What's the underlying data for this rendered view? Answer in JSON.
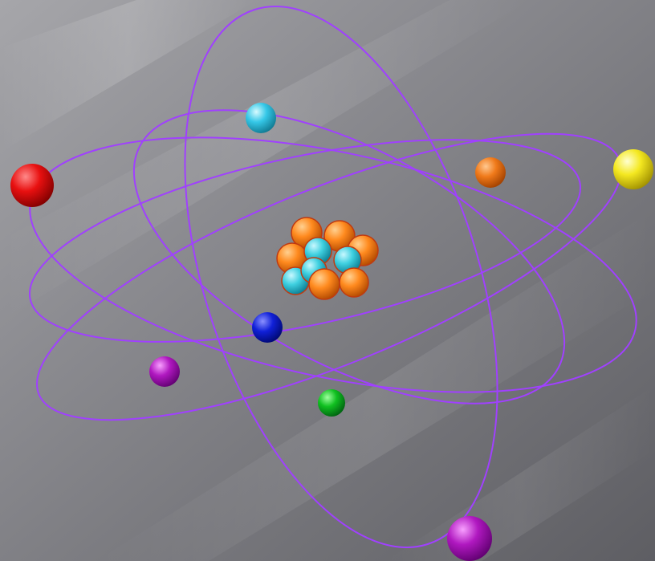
{
  "scene": {
    "subject": "atom",
    "colors": {
      "orbit": "#a040ff",
      "proton": "#ff8a1e",
      "neutron": "#3fd0e0",
      "electron_red": "#e81010",
      "electron_cyan": "#35c8e8",
      "electron_orange": "#f07a1a",
      "electron_yellow": "#f4e820",
      "electron_blue": "#1020d8",
      "electron_magenta": "#b018c0",
      "electron_green": "#10c020"
    }
  }
}
